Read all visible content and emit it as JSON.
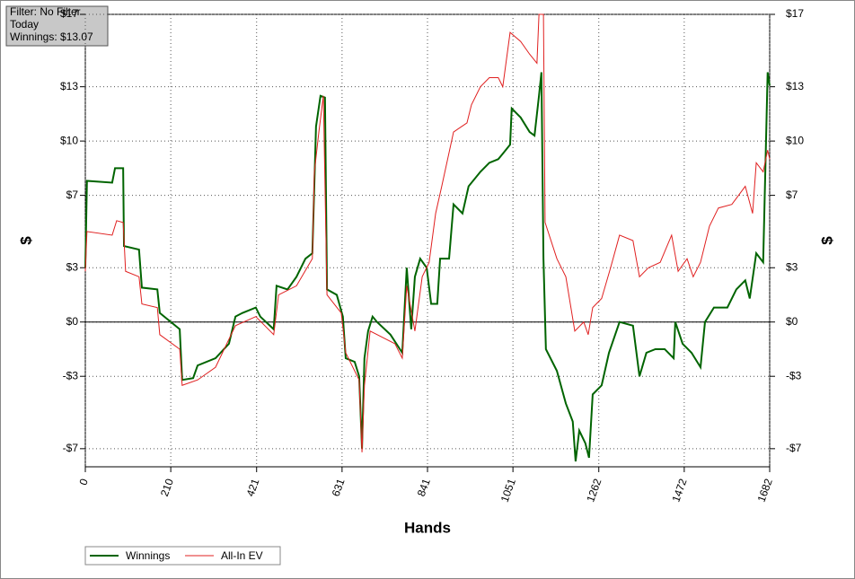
{
  "info": {
    "filter": "Filter: No Filter",
    "period": "Today",
    "winnings": "Winnings: $13.07"
  },
  "chart_data": {
    "type": "line",
    "xlabel": "Hands",
    "ylabel": "$",
    "y2label": "$",
    "xlim": [
      0,
      1682
    ],
    "xticks": [
      0,
      210,
      421,
      631,
      841,
      1051,
      1262,
      1472,
      1682
    ],
    "ylim": [
      -8,
      17
    ],
    "yticks": [
      {
        "value": -7,
        "label": "-$7"
      },
      {
        "value": -3,
        "label": "-$3"
      },
      {
        "value": 0,
        "label": "$0"
      },
      {
        "value": 3,
        "label": "$3"
      },
      {
        "value": 7,
        "label": "$7"
      },
      {
        "value": 10,
        "label": "$10"
      },
      {
        "value": 13,
        "label": "$13"
      },
      {
        "value": 17,
        "label": "$17"
      }
    ],
    "y2lim": [
      -8,
      17
    ],
    "y2ticks": [
      {
        "value": -7,
        "label": "-$7"
      },
      {
        "value": -3,
        "label": "-$3"
      },
      {
        "value": 0,
        "label": "$0"
      },
      {
        "value": 3,
        "label": "$3"
      },
      {
        "value": 7,
        "label": "$7"
      },
      {
        "value": 10,
        "label": "$10"
      },
      {
        "value": 13,
        "label": "$13"
      },
      {
        "value": 17,
        "label": "$17"
      }
    ],
    "grid": true,
    "series": [
      {
        "name": "Winnings",
        "color": "#006400",
        "x": [
          0,
          4,
          66,
          73,
          93,
          95,
          132,
          139,
          177,
          183,
          232,
          238,
          265,
          276,
          320,
          353,
          369,
          386,
          419,
          430,
          463,
          470,
          497,
          519,
          541,
          558,
          567,
          578,
          589,
          594,
          618,
          633,
          640,
          662,
          673,
          680,
          686,
          695,
          706,
          717,
          750,
          779,
          790,
          801,
          810,
          823,
          839,
          850,
          865,
          872,
          894,
          905,
          927,
          942,
          971,
          993,
          1015,
          1026,
          1044,
          1048,
          1070,
          1092,
          1104,
          1115,
          1121,
          1126,
          1132,
          1159,
          1181,
          1198,
          1205,
          1214,
          1229,
          1238,
          1247,
          1269,
          1287,
          1313,
          1346,
          1362,
          1379,
          1401,
          1424,
          1446,
          1450,
          1468,
          1490,
          1512,
          1523,
          1545,
          1578,
          1600,
          1622,
          1633,
          1649,
          1666,
          1677,
          1682
        ],
        "values": [
          3,
          7.8,
          7.7,
          8.5,
          8.5,
          4.2,
          4,
          1.9,
          1.8,
          0.5,
          -0.4,
          -3.2,
          -3.1,
          -2.4,
          -2,
          -1.2,
          0.3,
          0.5,
          0.8,
          0.3,
          -0.4,
          2,
          1.8,
          2.5,
          3.5,
          3.8,
          10.8,
          12.5,
          12.4,
          1.8,
          1.5,
          0.3,
          -2,
          -2.2,
          -3,
          -7,
          -2,
          -0.5,
          0.3,
          0,
          -0.7,
          -1.7,
          3,
          -0.4,
          2.5,
          3.5,
          3,
          1,
          1,
          3.5,
          3.5,
          6.5,
          6,
          7.5,
          8.3,
          8.8,
          9,
          9.3,
          9.8,
          11.8,
          11.3,
          10.5,
          10.3,
          12.5,
          13.8,
          3.5,
          -1.5,
          -2.7,
          -4.5,
          -5.5,
          -7.7,
          -6,
          -6.7,
          -7.5,
          -4,
          -3.5,
          -1.7,
          0,
          -0.2,
          -3,
          -1.7,
          -1.5,
          -1.5,
          -2,
          0,
          -1.2,
          -1.7,
          -2.5,
          0,
          0.8,
          0.8,
          1.8,
          2.3,
          1.3,
          3.8,
          3.3,
          13.8,
          13.07
        ]
      },
      {
        "name": "All-In EV",
        "color": "#e02020",
        "x": [
          0,
          4,
          66,
          77,
          93,
          99,
          132,
          139,
          177,
          183,
          232,
          238,
          276,
          320,
          369,
          419,
          463,
          475,
          519,
          558,
          563,
          574,
          585,
          594,
          629,
          640,
          673,
          680,
          686,
          700,
          761,
          779,
          790,
          810,
          828,
          845,
          861,
          876,
          905,
          938,
          949,
          971,
          993,
          1015,
          1026,
          1044,
          1070,
          1092,
          1110,
          1115,
          1126,
          1130,
          1159,
          1181,
          1203,
          1225,
          1236,
          1247,
          1269,
          1291,
          1313,
          1346,
          1362,
          1384,
          1413,
          1441,
          1457,
          1479,
          1494,
          1512,
          1534,
          1556,
          1589,
          1622,
          1640,
          1649,
          1666,
          1677,
          1682
        ],
        "values": [
          2.8,
          5,
          4.8,
          5.6,
          5.5,
          2.8,
          2.5,
          1,
          0.8,
          -0.7,
          -1.5,
          -3.5,
          -3.2,
          -2.5,
          -0.2,
          0.3,
          -0.7,
          1.5,
          2,
          3.5,
          8.3,
          10.5,
          12.5,
          1.5,
          0.5,
          -1.7,
          -3.2,
          -7.2,
          -3.5,
          -0.5,
          -1.2,
          -2,
          2,
          -0.5,
          2.5,
          3.3,
          6,
          7.5,
          10.5,
          11,
          12,
          13,
          13.5,
          13.5,
          13,
          16,
          15.5,
          14.8,
          14.3,
          17,
          17,
          5.5,
          3.5,
          2.5,
          -0.5,
          0,
          -0.7,
          0.8,
          1.3,
          3,
          4.8,
          4.5,
          2.5,
          3,
          3.3,
          4.8,
          2.8,
          3.5,
          2.5,
          3.3,
          5.3,
          6.3,
          6.5,
          7.5,
          6,
          8.8,
          8.3,
          9.5,
          9
        ]
      }
    ]
  }
}
